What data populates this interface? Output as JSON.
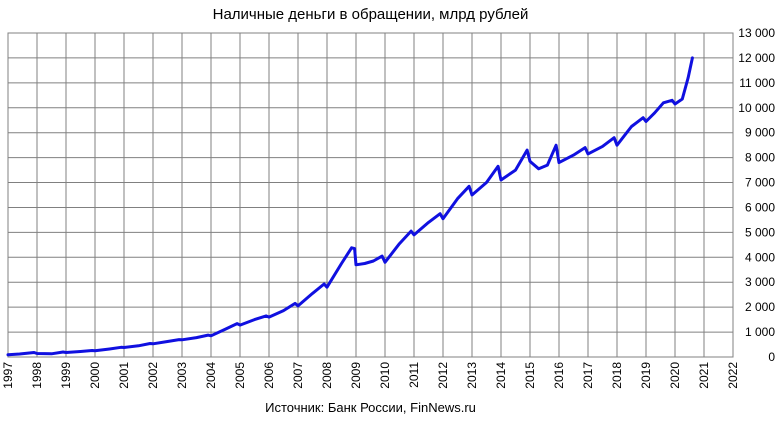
{
  "chart_data": {
    "type": "line",
    "title": "Наличные деньги в обращении, млрд рублей",
    "source": "Источник: Банк России, FinNews.ru",
    "xlabel": "",
    "ylabel": "",
    "xlim": [
      1997,
      2022
    ],
    "ylim": [
      0,
      13000
    ],
    "grid": true,
    "y_axis_side": "right",
    "series_color": "#1010e0",
    "x_ticks": [
      "1997",
      "1998",
      "1999",
      "2000",
      "2001",
      "2002",
      "2003",
      "2004",
      "2005",
      "2006",
      "2007",
      "2008",
      "2009",
      "2010",
      "2011",
      "2012",
      "2013",
      "2014",
      "2015",
      "2016",
      "2017",
      "2018",
      "2019",
      "2020",
      "2021",
      "2022"
    ],
    "y_ticks": [
      "0",
      "1 000",
      "2 000",
      "3 000",
      "4 000",
      "5 000",
      "6 000",
      "7 000",
      "8 000",
      "9 000",
      "10 000",
      "11 000",
      "12 000",
      "13 000"
    ],
    "series": [
      {
        "x": [
          1997.0,
          1997.4,
          1997.9,
          1998.0,
          1998.5,
          1998.9,
          1999.0,
          1999.5,
          1999.9,
          2000.0,
          2000.5,
          2000.9,
          2001.0,
          2001.5,
          2001.9,
          2002.0,
          2002.5,
          2002.9,
          2003.0,
          2003.5,
          2003.9,
          2004.0,
          2004.5,
          2004.9,
          2005.0,
          2005.5,
          2005.9,
          2006.0,
          2006.5,
          2006.9,
          2007.0,
          2007.5,
          2007.9,
          2008.0,
          2008.5,
          2008.85,
          2008.95,
          2009.0,
          2009.3,
          2009.6,
          2009.9,
          2010.0,
          2010.5,
          2010.9,
          2011.0,
          2011.5,
          2011.9,
          2012.0,
          2012.5,
          2012.9,
          2013.0,
          2013.5,
          2013.9,
          2014.0,
          2014.5,
          2014.9,
          2015.0,
          2015.3,
          2015.6,
          2015.9,
          2016.0,
          2016.5,
          2016.9,
          2017.0,
          2017.5,
          2017.9,
          2018.0,
          2018.5,
          2018.9,
          2019.0,
          2019.3,
          2019.6,
          2019.9,
          2020.0,
          2020.25,
          2020.45,
          2020.6
        ],
        "y": [
          90,
          120,
          180,
          140,
          130,
          200,
          180,
          220,
          260,
          250,
          320,
          390,
          380,
          450,
          540,
          530,
          620,
          700,
          690,
          780,
          880,
          850,
          1120,
          1340,
          1280,
          1500,
          1650,
          1600,
          1860,
          2150,
          2050,
          2550,
          2930,
          2800,
          3750,
          4380,
          4350,
          3700,
          3750,
          3850,
          4050,
          3800,
          4550,
          5050,
          4900,
          5400,
          5750,
          5550,
          6350,
          6850,
          6500,
          7000,
          7650,
          7100,
          7500,
          8300,
          7850,
          7550,
          7700,
          8500,
          7800,
          8100,
          8400,
          8150,
          8450,
          8800,
          8500,
          9250,
          9600,
          9450,
          9800,
          10200,
          10300,
          10150,
          10350,
          11200,
          12000
        ]
      }
    ]
  }
}
